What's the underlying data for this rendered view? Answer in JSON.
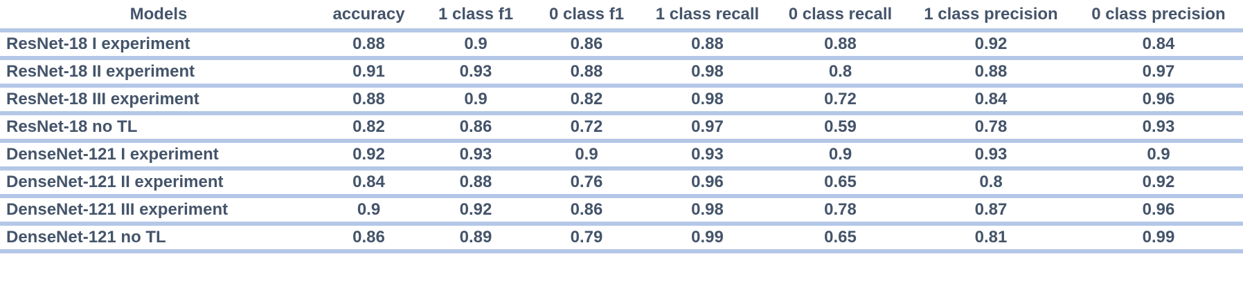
{
  "table": {
    "header": [
      "Models",
      "accuracy",
      "1 class f1",
      "0 class f1",
      "1 class recall",
      "0 class recall",
      "1 class precision",
      "0 class precision"
    ],
    "rows": [
      [
        "ResNet-18 I experiment",
        0.88,
        0.9,
        0.86,
        0.88,
        0.88,
        0.92,
        0.84
      ],
      [
        "ResNet-18 II experiment",
        0.91,
        0.93,
        0.88,
        0.98,
        0.8,
        0.88,
        0.97
      ],
      [
        "ResNet-18 III experiment",
        0.88,
        0.9,
        0.82,
        0.98,
        0.72,
        0.84,
        0.96
      ],
      [
        "ResNet-18 no TL",
        0.82,
        0.86,
        0.72,
        0.97,
        0.59,
        0.78,
        0.93
      ],
      [
        "DenseNet-121 I experiment",
        0.92,
        0.93,
        0.9,
        0.93,
        0.9,
        0.93,
        0.9
      ],
      [
        "DenseNet-121 II experiment",
        0.84,
        0.88,
        0.76,
        0.96,
        0.65,
        0.8,
        0.92
      ],
      [
        "DenseNet-121 III experiment",
        0.9,
        0.92,
        0.86,
        0.98,
        0.78,
        0.87,
        0.96
      ],
      [
        "DenseNet-121 no TL",
        0.86,
        0.89,
        0.79,
        0.99,
        0.65,
        0.81,
        0.99
      ]
    ]
  }
}
